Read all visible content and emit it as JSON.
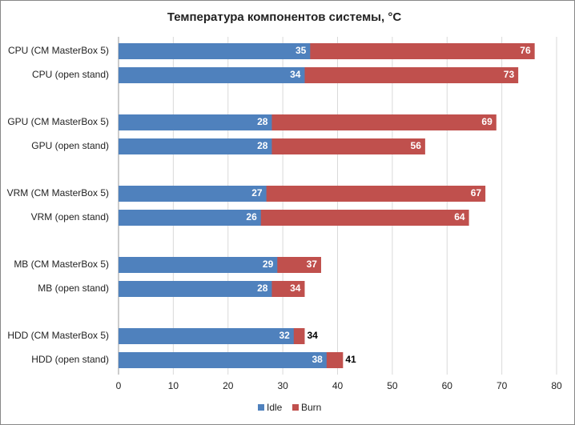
{
  "chart_data": {
    "type": "bar",
    "orientation": "horizontal",
    "overlap": true,
    "title": "Температура компонентов системы, °С",
    "categories": [
      "CPU (CM MasterBox 5)",
      "CPU (open stand)",
      "GPU (CM MasterBox 5)",
      "GPU (open stand)",
      "VRM (CM MasterBox 5)",
      "VRM (open stand)",
      "MB (CM MasterBox 5)",
      "MB (open stand)",
      "HDD (CM MasterBox 5)",
      "HDD (open stand)"
    ],
    "series": [
      {
        "name": "Idle",
        "color": "#4f81bd",
        "values": [
          35,
          34,
          28,
          28,
          27,
          26,
          29,
          28,
          32,
          38
        ]
      },
      {
        "name": "Burn",
        "color": "#c0504d",
        "values": [
          76,
          73,
          69,
          56,
          67,
          64,
          37,
          34,
          34,
          41
        ]
      }
    ],
    "xlim": [
      0,
      80
    ],
    "xticks": [
      0,
      10,
      20,
      30,
      40,
      50,
      60,
      70,
      80
    ],
    "grid": true,
    "legend": "bottom"
  }
}
